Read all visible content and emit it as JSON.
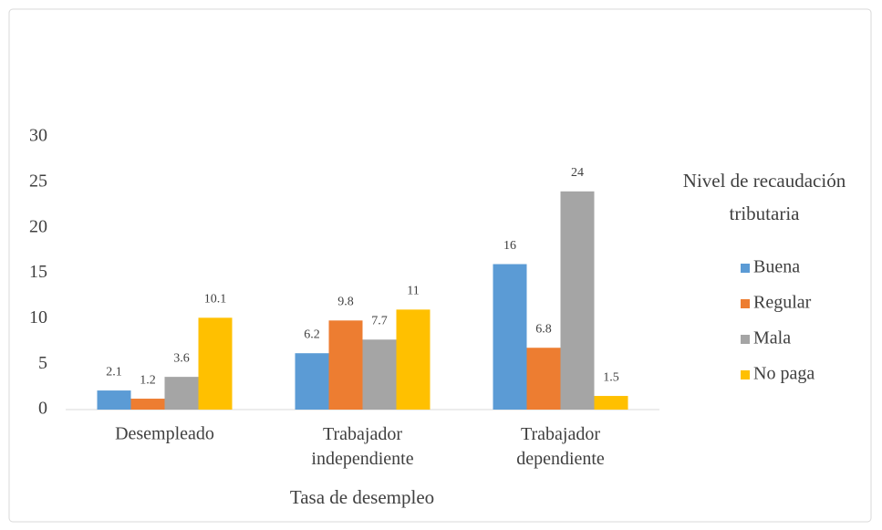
{
  "chart_data": {
    "type": "bar",
    "categories": [
      "Desempleado",
      "Trabajador independiente",
      "Trabajador dependiente"
    ],
    "series": [
      {
        "name": "Buena",
        "color": "#5b9bd5",
        "values": [
          2.1,
          6.2,
          16
        ]
      },
      {
        "name": "Regular",
        "color": "#ed7d31",
        "values": [
          1.2,
          9.8,
          6.8
        ]
      },
      {
        "name": "Mala",
        "color": "#a5a5a5",
        "values": [
          3.6,
          7.7,
          24
        ]
      },
      {
        "name": "No paga",
        "color": "#ffc000",
        "values": [
          10.1,
          11,
          1.5
        ]
      }
    ],
    "ylim": [
      0,
      30
    ],
    "yticks": [
      0,
      5,
      10,
      15,
      20,
      25,
      30
    ],
    "x_label": "Tasa de desempleo",
    "legend_title": "Nivel de recaudación tributaria",
    "legend_position": "right",
    "grid": false
  }
}
